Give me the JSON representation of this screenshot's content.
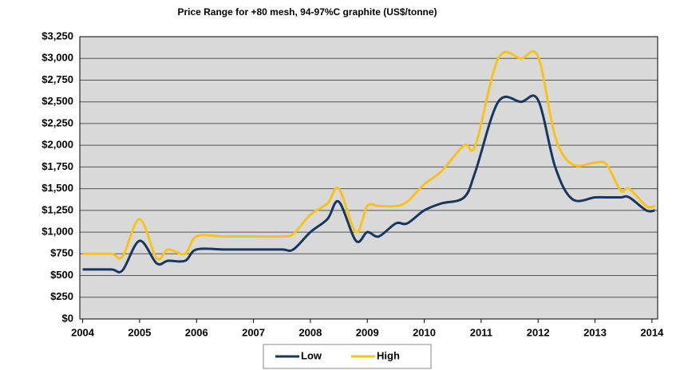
{
  "chart_data": {
    "type": "line",
    "title": "Price Range for +80 mesh, 94-97%C graphite (US$/tonne)",
    "x": [
      2004,
      2004.5,
      2004.7,
      2005,
      2005.3,
      2005.5,
      2005.8,
      2006,
      2006.5,
      2007,
      2007.5,
      2007.7,
      2008,
      2008.3,
      2008.5,
      2008.8,
      2009,
      2009.2,
      2009.5,
      2009.7,
      2010,
      2010.3,
      2010.7,
      2010.9,
      2011.3,
      2011.7,
      2012,
      2012.3,
      2012.6,
      2013,
      2013.2,
      2013.45,
      2013.6,
      2013.9,
      2014.05
    ],
    "series": [
      {
        "name": "Low",
        "color": "#17375e",
        "values": [
          570,
          570,
          560,
          900,
          640,
          670,
          670,
          800,
          800,
          800,
          800,
          800,
          1000,
          1150,
          1350,
          900,
          1000,
          950,
          1100,
          1100,
          1250,
          1330,
          1400,
          1700,
          2500,
          2500,
          2520,
          1750,
          1380,
          1400,
          1400,
          1400,
          1400,
          1250,
          1250
        ]
      },
      {
        "name": "High",
        "color": "#f7c21a",
        "values": [
          750,
          750,
          720,
          1150,
          700,
          800,
          750,
          950,
          950,
          950,
          950,
          980,
          1200,
          1330,
          1500,
          1000,
          1300,
          1300,
          1300,
          1350,
          1550,
          1700,
          2000,
          2000,
          3000,
          3000,
          3020,
          2100,
          1780,
          1800,
          1780,
          1480,
          1500,
          1300,
          1300
        ]
      }
    ],
    "xlim": [
      2003.95,
      2014.1
    ],
    "xticks": [
      2004,
      2005,
      2006,
      2007,
      2008,
      2009,
      2010,
      2011,
      2012,
      2013,
      2014
    ],
    "ylim": [
      0,
      3250
    ],
    "yticks": [
      {
        "value": 0,
        "label": "$0"
      },
      {
        "value": 250,
        "label": "$250"
      },
      {
        "value": 500,
        "label": "$500"
      },
      {
        "value": 750,
        "label": "$750"
      },
      {
        "value": 1000,
        "label": "$1,000"
      },
      {
        "value": 1250,
        "label": "$1,250"
      },
      {
        "value": 1500,
        "label": "$1,500"
      },
      {
        "value": 1750,
        "label": "$1,750"
      },
      {
        "value": 2000,
        "label": "$2,000"
      },
      {
        "value": 2250,
        "label": "$2,250"
      },
      {
        "value": 2500,
        "label": "$2,500"
      },
      {
        "value": 2750,
        "label": "$2,750"
      },
      {
        "value": 3000,
        "label": "$3,000"
      },
      {
        "value": 3250,
        "label": "$3,250"
      }
    ],
    "grid": true,
    "legend": "bottom"
  }
}
